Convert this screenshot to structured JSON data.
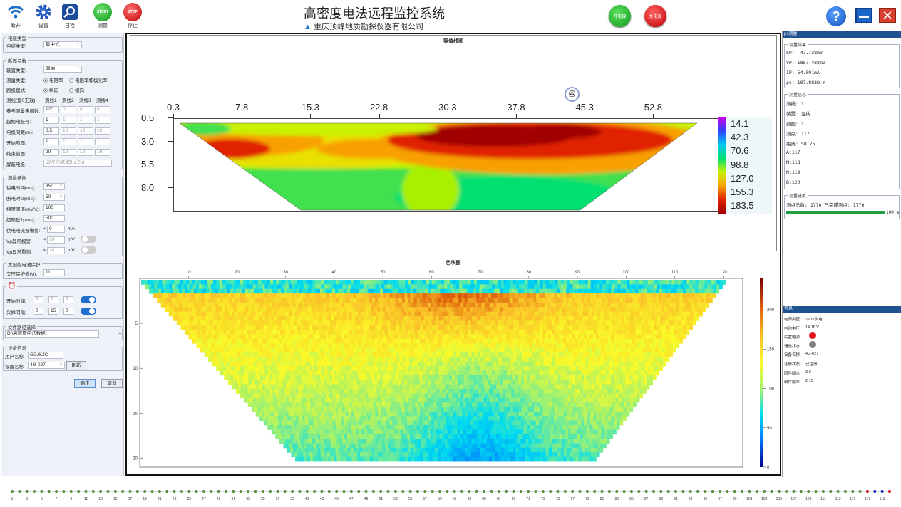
{
  "toolbar": {
    "disconnect": "断开",
    "settings": "设置",
    "selfcheck": "自检",
    "measure": "测量",
    "stop": "停止",
    "start_icon": "START",
    "stop_icon": "STOP"
  },
  "app": {
    "title": "高密度电法远程监控系统",
    "subtitle": "重庆顶峰地质勘探仪器有限公司",
    "power_on": "开电源",
    "power_off": "关电源"
  },
  "left": {
    "cable_group": "电缆类型",
    "cable_type_label": "电缆类型:",
    "cable_type": "集中式",
    "section_group": "断面参数",
    "device_type_label": "装置类型:",
    "device_type": "温纳",
    "meas_type_label": "测量类型:",
    "opt_resistivity": "电阻率",
    "opt_res_ip": "电阻率和极化率",
    "direction_label": "跑极模式:",
    "opt_vertical": "纵向",
    "opt_horizontal": "横向",
    "line_label": "测线(置0无效):",
    "lines": [
      "测线1",
      "测线2",
      "测线3",
      "测线4"
    ],
    "rows": [
      {
        "label": "参与测量电极数:",
        "vals": [
          "120",
          "0",
          "0",
          "0"
        ]
      },
      {
        "label": "起始电极号:",
        "vals": [
          "1",
          "1",
          "1",
          "1"
        ]
      },
      {
        "label": "电极间距(m):",
        "vals": [
          "0.5",
          "10",
          "10",
          "10"
        ]
      },
      {
        "label": "开始剖面:",
        "vals": [
          "1",
          "1",
          "1",
          "1"
        ]
      },
      {
        "label": "结束剖面:",
        "vals": [
          "20",
          "19",
          "19",
          "19"
        ]
      }
    ],
    "shield_label": "屏蔽电极:",
    "shield_placeholder": "逗号分隔,如1,2,5,8",
    "meas_group": "测量参数",
    "supply_label": "供电时间(ms):",
    "supply": "350",
    "off_label": "断电时间(ms):",
    "off": "50",
    "grad_label": "梯度阈值(mV/s):",
    "grad": "100",
    "timeout_label": "超限延时(ms):",
    "timeout": "500",
    "current_alarm_label": "供电电流报警值:",
    "current_lt": "<",
    "current": "0",
    "current_unit": "mA",
    "vp_alarm_label": "Vp异常报警:",
    "vp_alarm_lt": "<",
    "vp_alarm": "10",
    "vp_alarm_unit": "mV",
    "vp_redo_label": "Vp异常重测:",
    "vp_redo_lt": "<",
    "vp_redo": "10",
    "vp_redo_unit": "mV",
    "solar_group": "太阳能电池保护",
    "undervolt_label": "欠压保护值(V):",
    "undervolt": "11.1",
    "start_time_label": "开始时间:",
    "start_h": "0",
    "start_m": "0",
    "start_s": "0",
    "interval_label": "采样间隔:",
    "int_h": "0",
    "int_m": "15",
    "int_s": "0",
    "file_group": "文件路径选择",
    "file_path": "D:\\高密度电法数据",
    "browse": "...",
    "device_group": "设备信息",
    "user_label": "用户名称",
    "user": "GDJKJC",
    "device_label": "设备名称",
    "device": "4G-027",
    "refresh": "刷新",
    "ok": "确定",
    "cancel": "取消"
  },
  "contour": {
    "title": "等值线图"
  },
  "heatmap": {
    "title": "色块图"
  },
  "right": {
    "ps_header": "ps测量",
    "result_group": "测量结果",
    "sp": "SP: -47.738mV",
    "vp": "VP: 1857.488mV",
    "ip": "IP: 54.091mA",
    "rho": "ρs: 107.883Ω·m",
    "info_group": "测量信息",
    "info": [
      "测线: 1",
      "装置: 温纳",
      "剖面: 1",
      "测点: 117",
      "距离: 58.75",
      "A:117",
      "M:118",
      "N:119",
      "B:120"
    ],
    "progress_group": "测量进度",
    "progress_text": "测点总数: 1770 已完成测点: 1770",
    "progress_pct": "100 %",
    "msg_header": "信息",
    "status": [
      {
        "label": "电源类型:",
        "value": "220V供电"
      },
      {
        "label": "电池电压:",
        "value": "14.16 V"
      },
      {
        "label": "后置电源:",
        "value": ""
      },
      {
        "label": "通信状态:",
        "value": ""
      },
      {
        "label": "设备名称:",
        "value": "4G-027"
      },
      {
        "label": "注册状态:",
        "value": "已注册"
      },
      {
        "label": "固件版本:",
        "value": "3.0"
      },
      {
        "label": "软件版本:",
        "value": "2.15"
      }
    ],
    "colors": {
      "power": "#e8141c",
      "comm": "#808080"
    }
  },
  "chart_data": [
    {
      "type": "heatmap",
      "title": "等值线图",
      "x_ticks": [
        "0.3",
        "7.8",
        "15.3",
        "22.8",
        "30.3",
        "37.8",
        "45.3",
        "52.8"
      ],
      "y_ticks": [
        "0.5",
        "3.0",
        "5.5",
        "8.0"
      ],
      "legend": [
        "14.1",
        "42.3",
        "70.6",
        "98.8",
        "127.0",
        "155.3",
        "183.5"
      ],
      "legend_colors": [
        "#d000e8",
        "#3040ff",
        "#00c8f0",
        "#00e070",
        "#c8f000",
        "#f8a000",
        "#e02000",
        "#a00000"
      ]
    },
    {
      "type": "heatmap",
      "title": "色块图",
      "x_ticks": [
        "10",
        "20",
        "30",
        "40",
        "50",
        "60",
        "70",
        "80",
        "90",
        "100",
        "110",
        "120"
      ],
      "y_ticks": [
        "5",
        "10",
        "15",
        "20"
      ],
      "colorbar_ticks": [
        "200",
        "150",
        "100",
        "50",
        "0"
      ]
    }
  ],
  "electrodes": {
    "count": 120,
    "labels": [
      "1",
      "3",
      "5",
      "7",
      "9",
      "11",
      "13",
      "15",
      "17",
      "19",
      "21",
      "23",
      "25",
      "27",
      "29",
      "31",
      "33",
      "35",
      "37",
      "39",
      "41",
      "43",
      "45",
      "47",
      "49",
      "51",
      "53",
      "55",
      "57",
      "59",
      "61",
      "63",
      "65",
      "67",
      "69",
      "71",
      "73",
      "75",
      "77",
      "79",
      "81",
      "83",
      "85",
      "87",
      "89",
      "91",
      "93",
      "95",
      "97",
      "99",
      "101",
      "103",
      "105",
      "107",
      "109",
      "111",
      "113",
      "115",
      "117",
      "119"
    ]
  }
}
